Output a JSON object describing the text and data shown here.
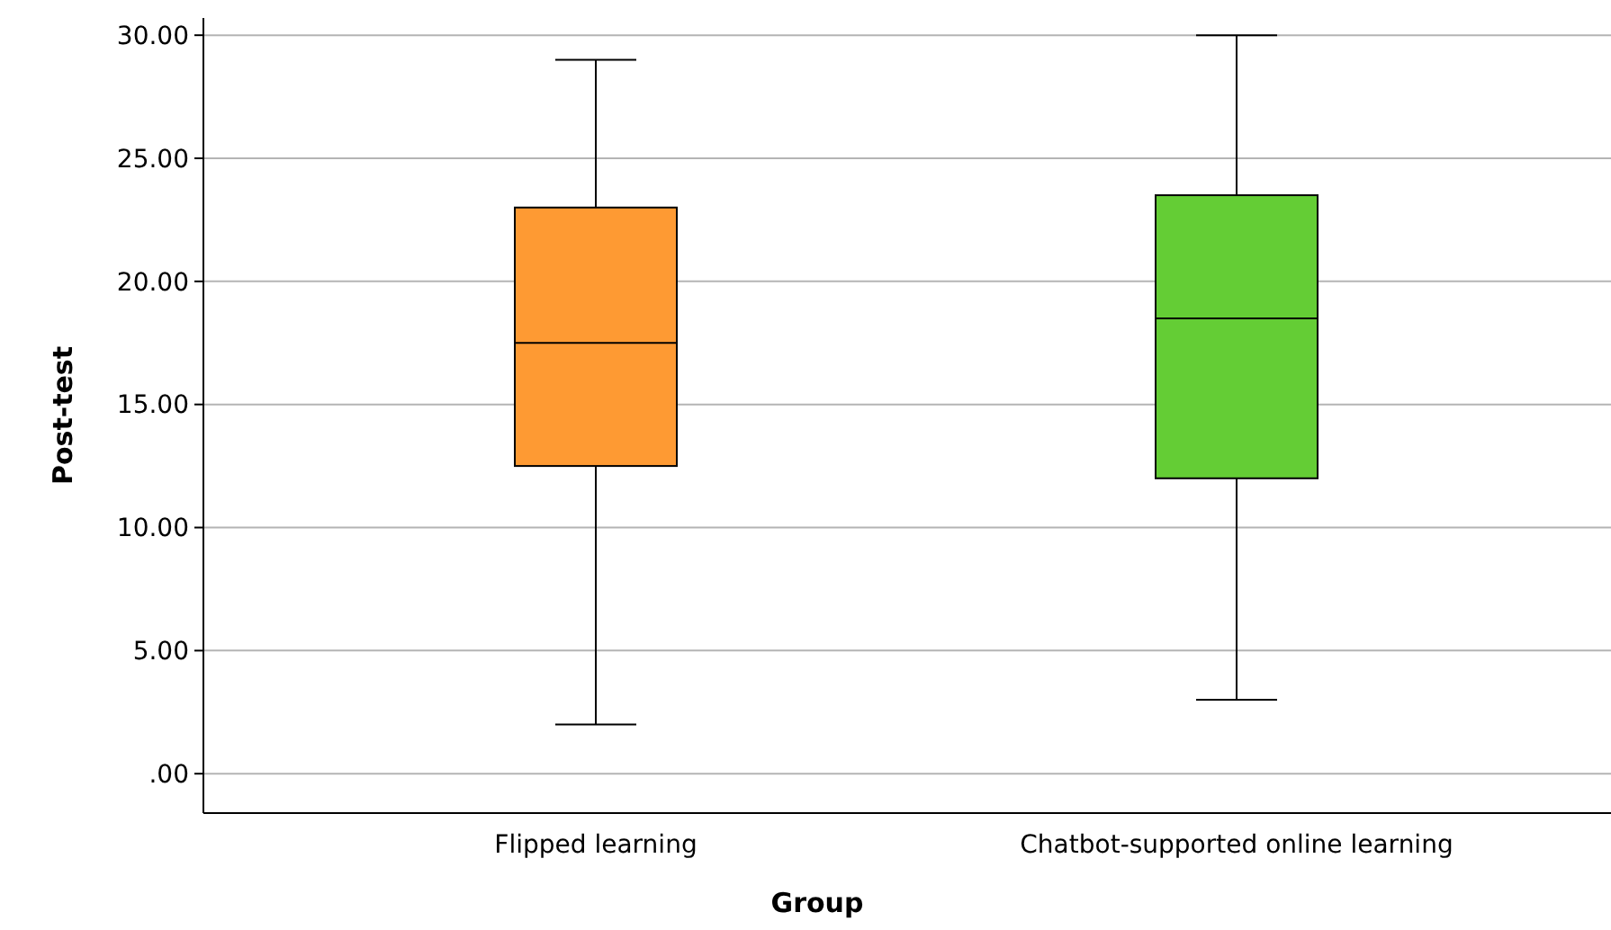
{
  "chart_data": {
    "type": "box",
    "xlabel": "Group",
    "ylabel": "Post-test",
    "categories": [
      "Flipped learning",
      "Chatbot-supported online learning"
    ],
    "colors": [
      "#fe9a33",
      "#64cd35"
    ],
    "boxes": [
      {
        "low": 2,
        "q1": 12.5,
        "median": 17.5,
        "q3": 23,
        "high": 29
      },
      {
        "low": 3,
        "q1": 12,
        "median": 18.5,
        "q3": 23.5,
        "high": 30
      }
    ],
    "ylim": [
      -1.6,
      30.7
    ],
    "yticks": [
      {
        "value": 0,
        "label": ".00"
      },
      {
        "value": 5,
        "label": "5.00"
      },
      {
        "value": 10,
        "label": "10.00"
      },
      {
        "value": 15,
        "label": "15.00"
      },
      {
        "value": 20,
        "label": "20.00"
      },
      {
        "value": 25,
        "label": "25.00"
      },
      {
        "value": 30,
        "label": "30.00"
      }
    ],
    "grid": "y"
  }
}
